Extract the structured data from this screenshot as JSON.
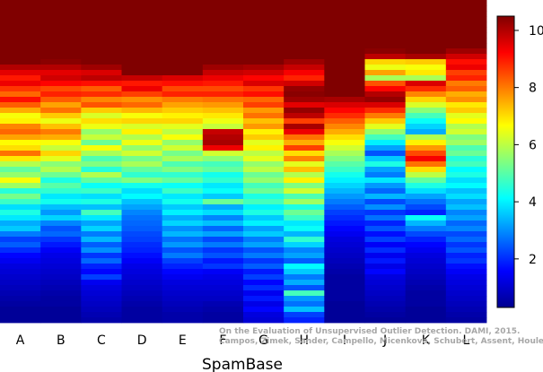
{
  "chart_data": {
    "type": "heatmap",
    "xlabel": "SpamBase",
    "columns": [
      "A",
      "B",
      "C",
      "D",
      "E",
      "F",
      "G",
      "H",
      "I",
      "J",
      "K",
      "L"
    ],
    "colorbar": {
      "min": 0.3,
      "max": 10.5,
      "ticks": [
        2,
        4,
        6,
        8,
        10
      ],
      "colors": [
        "#00008f",
        "#0000ff",
        "#0080ff",
        "#00ffff",
        "#80ff80",
        "#ffff00",
        "#ff8000",
        "#ff0000",
        "#800000"
      ]
    },
    "columns_data": [
      [
        10.5,
        10.5,
        10.5,
        10.5,
        10.5,
        10.5,
        10.5,
        10.5,
        10.5,
        10.5,
        10.5,
        10.5,
        10,
        9.5,
        9,
        9.4,
        8.7,
        8.2,
        9.1,
        8.3,
        7.5,
        6.6,
        6.8,
        7.9,
        8.2,
        7.6,
        6.7,
        7,
        8.1,
        6.9,
        5.9,
        5.1,
        5.6,
        6.6,
        5.7,
        4.5,
        5.3,
        4.7,
        3.8,
        4.4,
        3.9,
        3.3,
        3.6,
        2.8,
        2.2,
        2.5,
        2,
        1.6,
        1.4,
        1.2,
        1.1,
        1,
        0.9,
        0.8,
        0.7,
        0.6,
        0.5,
        0.4,
        0.4,
        0.4
      ],
      [
        10.5,
        10.5,
        10.5,
        10.5,
        10.5,
        10.5,
        10.5,
        10.5,
        10.5,
        10.5,
        10.5,
        10.4,
        10,
        9.5,
        9.7,
        9.2,
        8.5,
        8.9,
        8.3,
        7.6,
        8.1,
        7.2,
        6.5,
        7.3,
        8,
        7.5,
        6.6,
        6.1,
        7.1,
        6.4,
        5.5,
        5.9,
        5.2,
        4.4,
        5,
        4.6,
        3.9,
        4.3,
        3.5,
        3.1,
        3.7,
        2.9,
        2.4,
        2.6,
        2.1,
        1.8,
        1.5,
        1.3,
        1.2,
        1.1,
        1,
        0.9,
        0.8,
        0.7,
        0.6,
        0.5,
        0.5,
        0.4,
        0.4,
        0.4
      ],
      [
        10.5,
        10.5,
        10.5,
        10.5,
        10.5,
        10.5,
        10.5,
        10.5,
        10.5,
        10.5,
        10.5,
        10.5,
        10.2,
        9.6,
        9.9,
        9.1,
        8.3,
        8.8,
        7.9,
        8.4,
        7.2,
        6.3,
        7,
        6.5,
        5.6,
        6.1,
        5.2,
        6.6,
        5.8,
        4.9,
        5.4,
        4.5,
        5.9,
        5.1,
        4.2,
        4.7,
        3.8,
        4.4,
        3.5,
        4.8,
        3.9,
        3.2,
        3.7,
        2.8,
        3.4,
        2.5,
        3,
        2.1,
        2.6,
        1.9,
        1.6,
        2.2,
        1.4,
        1.2,
        1.1,
        1,
        0.9,
        0.8,
        0.7,
        0.6
      ],
      [
        10.5,
        10.5,
        10.5,
        10.5,
        10.5,
        10.5,
        10.5,
        10.5,
        10.5,
        10.5,
        10.5,
        10.5,
        10.5,
        10.5,
        9.8,
        9,
        9.4,
        8.6,
        7.8,
        8.2,
        7.4,
        6.6,
        7.1,
        6.3,
        6.8,
        5.9,
        6.5,
        5.6,
        6.2,
        5.3,
        5.8,
        5.1,
        4.6,
        5.4,
        4.3,
        3.8,
        4.1,
        3.5,
        3.2,
        2.9,
        2.7,
        2.6,
        2.5,
        2.3,
        2.2,
        2,
        1.9,
        1.7,
        1.5,
        1.3,
        1.2,
        1.1,
        1,
        0.9,
        0.8,
        0.7,
        0.6,
        0.5,
        0.5,
        0.5
      ],
      [
        10.5,
        10.5,
        10.5,
        10.5,
        10.5,
        10.5,
        10.5,
        10.5,
        10.5,
        10.5,
        10.5,
        10.5,
        10.5,
        10.5,
        9.6,
        9.1,
        8.5,
        8.9,
        8,
        7.6,
        7.2,
        6.8,
        7.1,
        6.4,
        6,
        6.6,
        5.6,
        6.2,
        5.3,
        5.8,
        4.9,
        5.4,
        4.6,
        5.1,
        4.2,
        4.7,
        3.9,
        4.3,
        3.6,
        4,
        3.3,
        3.7,
        3,
        3.4,
        2.7,
        3.1,
        2.4,
        2.8,
        2.2,
        1.9,
        1.6,
        1.4,
        1.2,
        1.1,
        1,
        0.9,
        0.8,
        0.7,
        0.6,
        0.6
      ],
      [
        10.5,
        10.5,
        10.5,
        10.5,
        10.5,
        10.5,
        10.5,
        10.5,
        10.5,
        10.5,
        10.5,
        10.5,
        10.2,
        9.8,
        9.4,
        9,
        8.5,
        8.9,
        8.1,
        7.7,
        7.3,
        6.9,
        6.5,
        6.1,
        9.8,
        10,
        10.1,
        9.4,
        6.2,
        5.5,
        4.8,
        5.1,
        4.3,
        4.6,
        3.9,
        4.2,
        3.6,
        5.2,
        3.3,
        3.8,
        2.9,
        3.5,
        2.6,
        3.2,
        2.3,
        2.8,
        2.1,
        2.4,
        1.8,
        2.1,
        1.5,
        1.3,
        1.2,
        1.1,
        1,
        0.9,
        0.7,
        0.6,
        0.5,
        0.5
      ],
      [
        10.5,
        10.5,
        10.5,
        10.5,
        10.5,
        10.5,
        10.5,
        10.5,
        10.5,
        10.5,
        10.5,
        10.5,
        10.1,
        9.7,
        9.2,
        9.6,
        8.7,
        9.1,
        8.2,
        8.6,
        7.7,
        8.1,
        7.3,
        7.7,
        6.8,
        7.2,
        6.4,
        6.8,
        6,
        6.4,
        5.6,
        6,
        5.2,
        5.6,
        4.8,
        5.2,
        4.4,
        4.8,
        4,
        4.4,
        3.6,
        4,
        3.2,
        3.6,
        2.8,
        3.2,
        2.4,
        2.8,
        2.1,
        2.5,
        1.8,
        2.2,
        1.6,
        2,
        1.4,
        1.8,
        1.3,
        1.6,
        1.2,
        1.1
      ],
      [
        10.5,
        10.5,
        10.5,
        10.5,
        10.5,
        10.5,
        10.5,
        10.5,
        10.5,
        10.5,
        10.5,
        10.2,
        9.8,
        9.3,
        8.9,
        9.7,
        10.3,
        10.4,
        10.2,
        9.5,
        10.3,
        9.9,
        8.6,
        10.1,
        9.4,
        8.1,
        7.5,
        8.6,
        7,
        7.9,
        6.4,
        7.3,
        5.9,
        6.8,
        5.4,
        6.2,
        4.9,
        5.7,
        4.4,
        5.2,
        4.7,
        3.9,
        4.2,
        3.4,
        4.6,
        3.7,
        2.9,
        3.2,
        2.5,
        4.1,
        3.6,
        2.8,
        3.3,
        2.4,
        4.8,
        3.1,
        2.7,
        3.5,
        2.2,
        1.9
      ],
      [
        10.5,
        10.5,
        10.5,
        10.5,
        10.5,
        10.5,
        10.5,
        10.5,
        10.5,
        10.5,
        10.5,
        10.5,
        10.5,
        10.5,
        10.5,
        10.5,
        10.5,
        10.5,
        10.1,
        9.6,
        9.2,
        8.8,
        8.3,
        7.9,
        7.5,
        7,
        6.6,
        6.2,
        5.8,
        5.4,
        5,
        4.7,
        4.3,
        4,
        3.7,
        3.4,
        3.1,
        2.8,
        2.5,
        2.2,
        2,
        1.8,
        1.6,
        1.4,
        1.2,
        1.1,
        1,
        0.9,
        0.8,
        0.7,
        0.6,
        0.5,
        0.5,
        0.5,
        0.5,
        0.5,
        0.4,
        0.4,
        0.4,
        0.4
      ],
      [
        10.5,
        10.5,
        10.5,
        10.5,
        10.5,
        10.5,
        10.5,
        10.5,
        10.5,
        10.4,
        9.9,
        7.1,
        6.5,
        7.6,
        5.8,
        8.4,
        9.2,
        10,
        10.3,
        9.6,
        8.8,
        8,
        7.2,
        6.4,
        5.6,
        4.8,
        4,
        3.2,
        2.4,
        3.6,
        4.4,
        3.2,
        2.8,
        3.9,
        3.1,
        2.6,
        3.4,
        2.3,
        3,
        2.1,
        2.7,
        1.9,
        2.4,
        1.7,
        2.2,
        1.5,
        2,
        1.4,
        1.8,
        1.3,
        1.6,
        1.2,
        1.1,
        1,
        0.9,
        0.8,
        0.7,
        0.6,
        0.5,
        0.4
      ],
      [
        10.5,
        10.5,
        10.5,
        10.5,
        10.5,
        10.5,
        10.5,
        10.5,
        10.5,
        10.5,
        10.1,
        7.2,
        6.6,
        6.9,
        5.8,
        9.6,
        8.8,
        7.9,
        7.1,
        6.3,
        5.5,
        4.8,
        4.2,
        3.7,
        3.3,
        5.9,
        6.8,
        7.7,
        8.5,
        9.3,
        8.1,
        7,
        6,
        5.1,
        4.4,
        3.8,
        3.2,
        2.7,
        2.3,
        1.9,
        4.2,
        3.4,
        2.8,
        2.3,
        1.9,
        1.6,
        1.4,
        1.2,
        1.1,
        1,
        0.9,
        0.8,
        0.7,
        0.6,
        0.5,
        0.5,
        0.5,
        0.4,
        0.4,
        0.4
      ],
      [
        10.5,
        10.5,
        10.5,
        10.5,
        10.5,
        10.5,
        10.5,
        10.5,
        10.5,
        10.2,
        9.7,
        9.1,
        9.4,
        8.6,
        8.9,
        8,
        8.3,
        7.5,
        7.8,
        6.9,
        7.2,
        6.4,
        6.7,
        5.9,
        6.2,
        5.4,
        5.7,
        4.9,
        5.2,
        4.5,
        4.8,
        4.1,
        4.4,
        3.8,
        4.1,
        3.5,
        3.8,
        3.2,
        3.5,
        2.9,
        3.2,
        2.6,
        2.9,
        2.3,
        2.6,
        2.1,
        2.4,
        1.9,
        2.1,
        1.7,
        1.5,
        1.3,
        1.2,
        1.1,
        1,
        0.9,
        0.8,
        0.7,
        0.6,
        0.5
      ]
    ]
  },
  "credit": {
    "line1": "On the Evaluation of Unsupervised Outlier Detection. DAMI, 2015.",
    "line2": "Campos, Zimek, Sander, Campello, Micenkova, Schubert, Assent, Houle"
  }
}
